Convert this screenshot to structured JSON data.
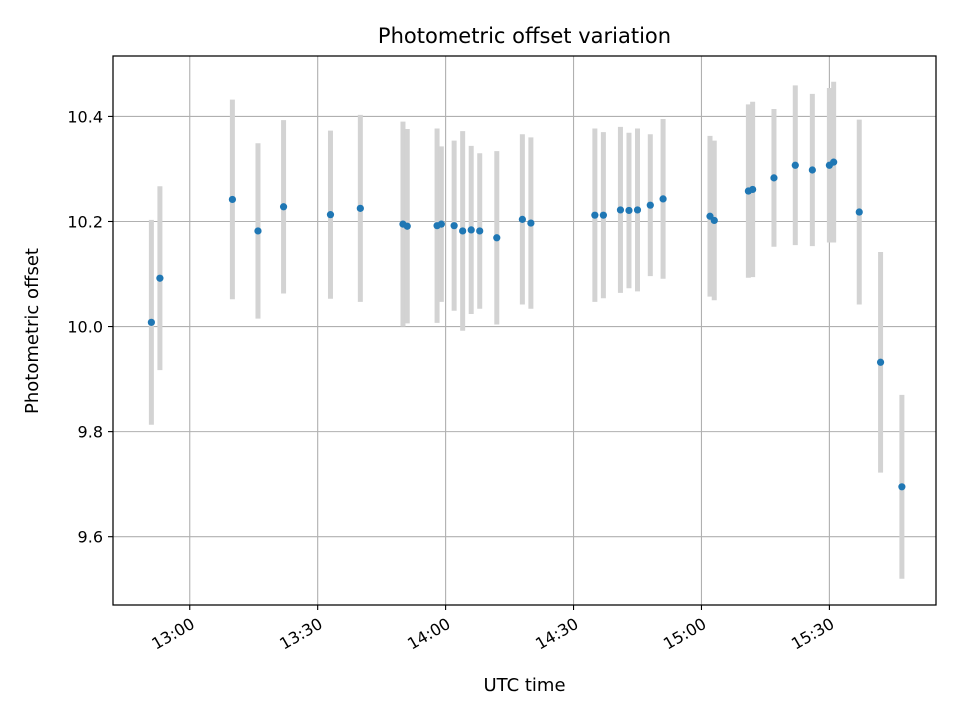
{
  "chart_data": {
    "type": "scatter",
    "title": "Photometric offset variation",
    "xlabel": "UTC time",
    "ylabel": "Photometric offset",
    "x_tick_labels": [
      "13:00",
      "13:30",
      "14:00",
      "14:30",
      "15:00",
      "15:30"
    ],
    "x_ticks": [
      "13:00",
      "13:30",
      "14:00",
      "14:30",
      "15:00",
      "15:30"
    ],
    "y_ticks": [
      9.6,
      9.8,
      10.0,
      10.2,
      10.4
    ],
    "y_tick_labels": [
      "9.6",
      "9.8",
      "10.0",
      "10.2",
      "10.4"
    ],
    "xlim": [
      "12:42",
      "15:55"
    ],
    "ylim": [
      9.47,
      10.515
    ],
    "grid": true,
    "colors": {
      "point": "#1f77b4",
      "errorbar": "#d3d3d3",
      "grid": "#b0b0b0"
    },
    "series": [
      {
        "points": [
          {
            "x": "12:51",
            "y": 10.008,
            "err": 0.195
          },
          {
            "x": "12:53",
            "y": 10.092,
            "err": 0.175
          },
          {
            "x": "13:10",
            "y": 10.242,
            "err": 0.19
          },
          {
            "x": "13:16",
            "y": 10.182,
            "err": 0.167
          },
          {
            "x": "13:22",
            "y": 10.228,
            "err": 0.165
          },
          {
            "x": "13:33",
            "y": 10.213,
            "err": 0.16
          },
          {
            "x": "13:40",
            "y": 10.225,
            "err": 0.178
          },
          {
            "x": "13:50",
            "y": 10.195,
            "err": 0.195
          },
          {
            "x": "13:51",
            "y": 10.191,
            "err": 0.185
          },
          {
            "x": "13:58",
            "y": 10.192,
            "err": 0.185
          },
          {
            "x": "13:59",
            "y": 10.195,
            "err": 0.148
          },
          {
            "x": "14:02",
            "y": 10.192,
            "err": 0.162
          },
          {
            "x": "14:04",
            "y": 10.182,
            "err": 0.19
          },
          {
            "x": "14:06",
            "y": 10.184,
            "err": 0.16
          },
          {
            "x": "14:08",
            "y": 10.182,
            "err": 0.148
          },
          {
            "x": "14:12",
            "y": 10.169,
            "err": 0.165
          },
          {
            "x": "14:18",
            "y": 10.204,
            "err": 0.162
          },
          {
            "x": "14:20",
            "y": 10.197,
            "err": 0.163
          },
          {
            "x": "14:35",
            "y": 10.212,
            "err": 0.165
          },
          {
            "x": "14:37",
            "y": 10.212,
            "err": 0.158
          },
          {
            "x": "14:41",
            "y": 10.222,
            "err": 0.158
          },
          {
            "x": "14:43",
            "y": 10.221,
            "err": 0.148
          },
          {
            "x": "14:45",
            "y": 10.222,
            "err": 0.155
          },
          {
            "x": "14:48",
            "y": 10.231,
            "err": 0.135
          },
          {
            "x": "14:51",
            "y": 10.243,
            "err": 0.152
          },
          {
            "x": "15:02",
            "y": 10.21,
            "err": 0.153
          },
          {
            "x": "15:03",
            "y": 10.202,
            "err": 0.152
          },
          {
            "x": "15:11",
            "y": 10.258,
            "err": 0.165
          },
          {
            "x": "15:12",
            "y": 10.261,
            "err": 0.167
          },
          {
            "x": "15:17",
            "y": 10.283,
            "err": 0.131
          },
          {
            "x": "15:22",
            "y": 10.307,
            "err": 0.152
          },
          {
            "x": "15:26",
            "y": 10.298,
            "err": 0.145
          },
          {
            "x": "15:30",
            "y": 10.307,
            "err": 0.147
          },
          {
            "x": "15:31",
            "y": 10.313,
            "err": 0.153
          },
          {
            "x": "15:37",
            "y": 10.218,
            "err": 0.176
          },
          {
            "x": "15:42",
            "y": 9.932,
            "err": 0.21
          },
          {
            "x": "15:47",
            "y": 9.695,
            "err": 0.175
          }
        ]
      }
    ]
  }
}
